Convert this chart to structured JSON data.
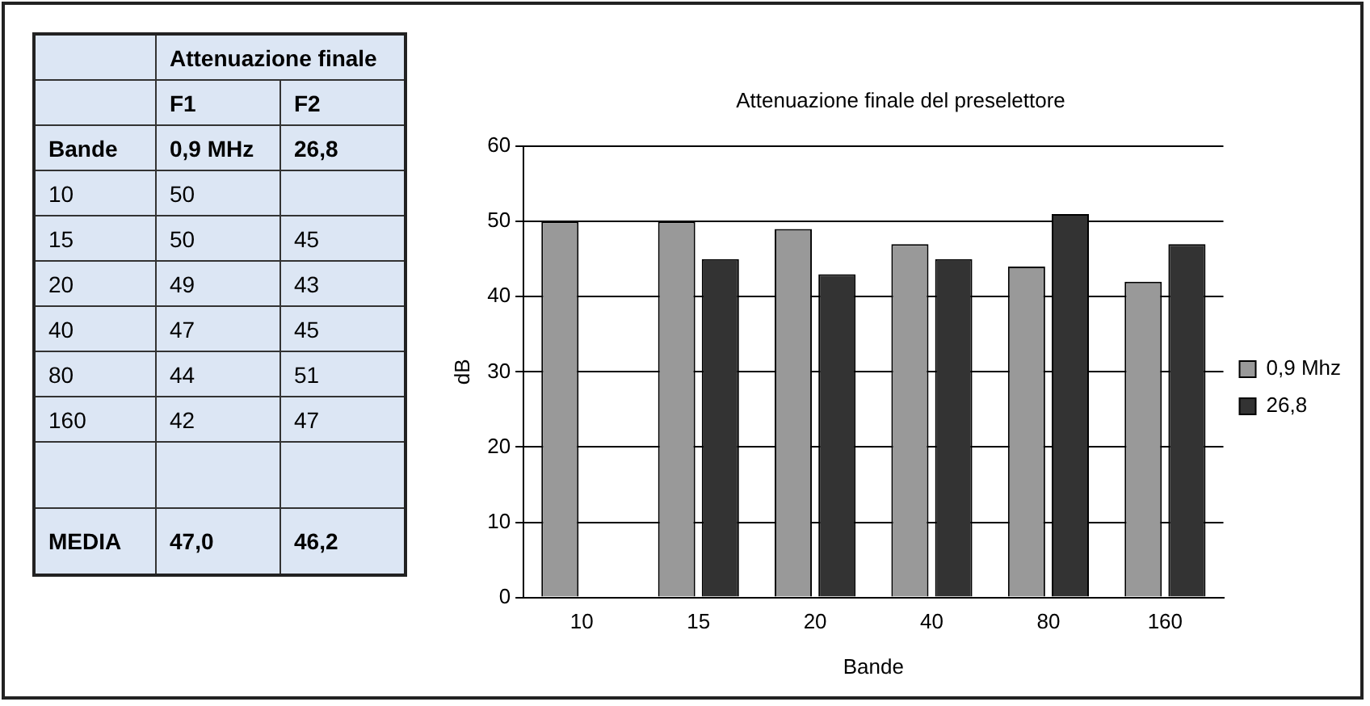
{
  "chart_data": [
    {
      "type": "other",
      "title": "Attenuazione finale",
      "categories": [
        "Bande",
        "10",
        "15",
        "20",
        "40",
        "80",
        "160",
        "MEDIA"
      ],
      "series": [
        {
          "name": "F1",
          "values": [
            null,
            50,
            50,
            49,
            47,
            44,
            42,
            47.0
          ],
          "value_labels": [
            "0,9 MHz",
            "50",
            "50",
            "49",
            "47",
            "44",
            "42",
            "47,0"
          ]
        },
        {
          "name": "F2",
          "values": [
            null,
            null,
            45,
            43,
            45,
            51,
            47,
            46.2
          ],
          "value_labels": [
            "26,8",
            null,
            "45",
            "43",
            "45",
            "51",
            "47",
            "46,2"
          ]
        }
      ]
    },
    {
      "type": "bar",
      "title": "Attenuazione finale del preselettore",
      "xlabel": "Bande",
      "ylabel": "dB",
      "categories": [
        "10",
        "15",
        "20",
        "40",
        "80",
        "160"
      ],
      "series": [
        {
          "name": "0,9 Mhz",
          "color": "#999999",
          "values": [
            50,
            50,
            49,
            47,
            44,
            42
          ]
        },
        {
          "name": "26,8",
          "color": "#333333",
          "values": [
            null,
            45,
            43,
            45,
            51,
            47
          ]
        }
      ],
      "ylim": [
        0,
        60
      ],
      "yticks": [
        0,
        10,
        20,
        30,
        40,
        50,
        60
      ],
      "grid": "y",
      "legend": "right"
    }
  ]
}
